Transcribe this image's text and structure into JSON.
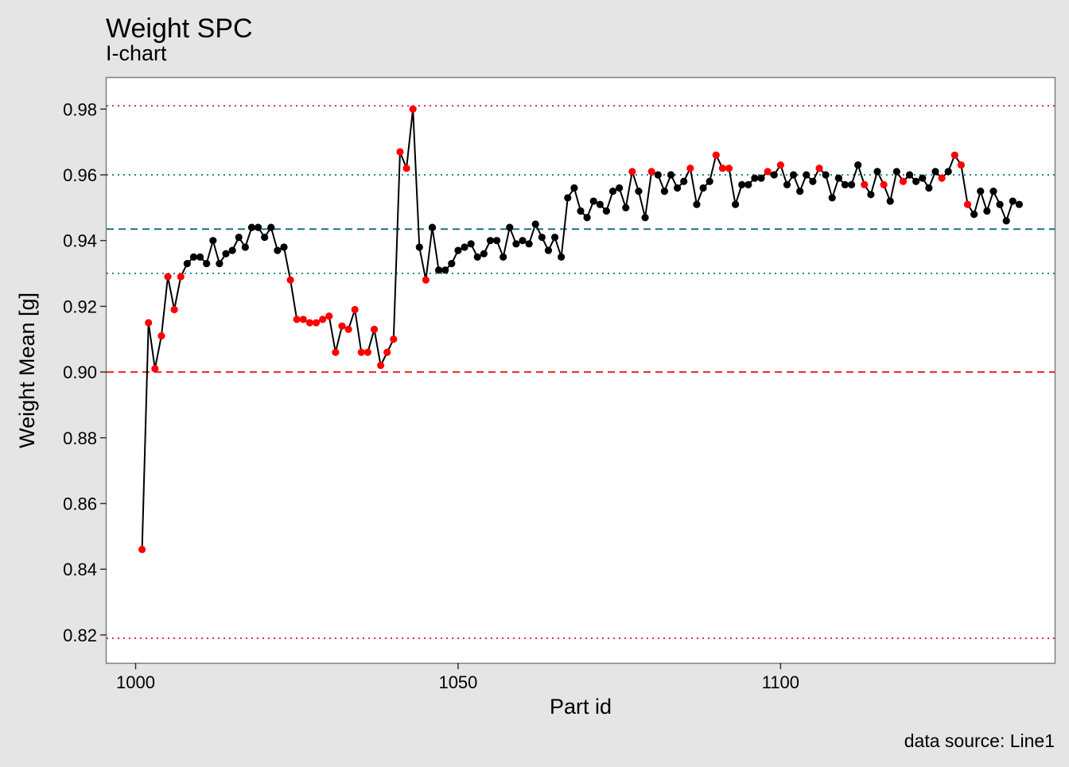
{
  "chart_data": {
    "type": "line",
    "title": "Weight SPC",
    "subtitle": "I-chart",
    "xlabel": "Part id",
    "ylabel": "Weight Mean [g]",
    "caption": "data source: Line1",
    "xlim": [
      995.5,
      1142.5
    ],
    "ylim": [
      0.8115,
      0.9895
    ],
    "x_ticks": [
      1000,
      1050,
      1100
    ],
    "x_tick_labels": [
      "1000",
      "1050",
      "1100"
    ],
    "y_ticks": [
      0.82,
      0.84,
      0.86,
      0.88,
      0.9,
      0.92,
      0.94,
      0.96,
      0.98
    ],
    "y_tick_labels": [
      "0.82",
      "0.84",
      "0.86",
      "0.88",
      "0.90",
      "0.92",
      "0.94",
      "0.96",
      "0.98"
    ],
    "grid": false,
    "reference_lines": [
      {
        "y": 0.981,
        "style": "dotted",
        "color": "#e0303e"
      },
      {
        "y": 0.819,
        "style": "dotted",
        "color": "#e0303e"
      },
      {
        "y": 0.96,
        "style": "dotted",
        "color": "#2a8a8a"
      },
      {
        "y": 0.93,
        "style": "dotted",
        "color": "#2a8a8a"
      },
      {
        "y": 0.9435,
        "style": "dashed",
        "color": "#1f6f8b"
      },
      {
        "y": 0.9,
        "style": "dashed",
        "color": "#ee2222"
      }
    ],
    "series": [
      {
        "line_color": "#000000",
        "point_colors": {
          "normal": "#000000",
          "flagged": "#ff0000"
        },
        "x_start": 1001,
        "values": [
          0.846,
          0.915,
          0.901,
          0.911,
          0.929,
          0.919,
          0.929,
          0.933,
          0.935,
          0.935,
          0.933,
          0.94,
          0.933,
          0.936,
          0.937,
          0.941,
          0.938,
          0.944,
          0.944,
          0.941,
          0.944,
          0.937,
          0.938,
          0.928,
          0.916,
          0.916,
          0.915,
          0.915,
          0.916,
          0.917,
          0.906,
          0.914,
          0.913,
          0.919,
          0.906,
          0.906,
          0.913,
          0.902,
          0.906,
          0.91,
          0.967,
          0.962,
          0.98,
          0.938,
          0.928,
          0.944,
          0.931,
          0.931,
          0.933,
          0.937,
          0.938,
          0.939,
          0.935,
          0.936,
          0.94,
          0.94,
          0.935,
          0.944,
          0.939,
          0.94,
          0.939,
          0.945,
          0.941,
          0.937,
          0.941,
          0.935,
          0.953,
          0.956,
          0.949,
          0.947,
          0.952,
          0.951,
          0.949,
          0.955,
          0.956,
          0.95,
          0.961,
          0.955,
          0.947,
          0.961,
          0.96,
          0.955,
          0.96,
          0.956,
          0.958,
          0.962,
          0.951,
          0.956,
          0.958,
          0.966,
          0.962,
          0.962,
          0.951,
          0.957,
          0.957,
          0.959,
          0.959,
          0.961,
          0.96,
          0.963,
          0.957,
          0.96,
          0.955,
          0.96,
          0.958,
          0.962,
          0.96,
          0.953,
          0.959,
          0.957,
          0.957,
          0.963,
          0.957,
          0.954,
          0.961,
          0.957,
          0.952,
          0.961,
          0.958,
          0.96,
          0.958,
          0.959,
          0.956,
          0.961,
          0.959,
          0.961,
          0.966,
          0.963,
          0.951,
          0.948,
          0.955,
          0.949,
          0.955,
          0.951,
          0.946,
          0.952,
          0.951
        ],
        "flagged": [
          0,
          1,
          2,
          3,
          4,
          5,
          6,
          23,
          24,
          25,
          26,
          27,
          28,
          29,
          30,
          31,
          32,
          33,
          34,
          35,
          36,
          37,
          38,
          39,
          40,
          41,
          42,
          44,
          76,
          79,
          85,
          89,
          90,
          91,
          97,
          99,
          105,
          112,
          115,
          118,
          124,
          126,
          127,
          128
        ]
      }
    ]
  }
}
